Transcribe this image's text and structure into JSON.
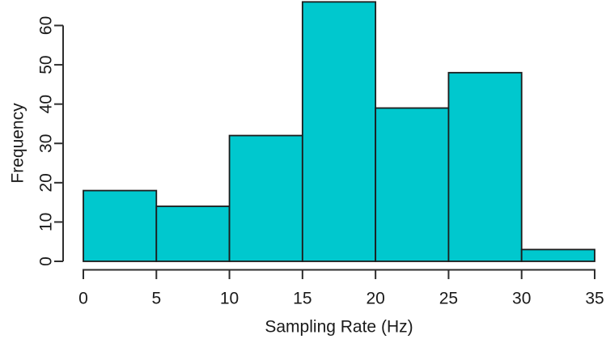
{
  "figure": {
    "background": "#ffffff"
  },
  "chart_data": {
    "type": "bar",
    "subtype": "histogram",
    "title": "",
    "xlabel": "Sampling Rate (Hz)",
    "ylabel": "Frequency",
    "bin_edges": [
      0,
      5,
      10,
      15,
      20,
      25,
      30,
      35
    ],
    "categories": [
      "0-5",
      "5-10",
      "10-15",
      "15-20",
      "20-25",
      "25-30",
      "30-35"
    ],
    "values": [
      18,
      14,
      32,
      66,
      39,
      48,
      3
    ],
    "x_ticks": [
      0,
      5,
      10,
      15,
      20,
      25,
      30,
      35
    ],
    "y_ticks": [
      0,
      10,
      20,
      30,
      40,
      50,
      60
    ],
    "xlim": [
      0,
      35
    ],
    "ylim": [
      0,
      66
    ],
    "grid": false,
    "legend": "none",
    "colors": {
      "bar_fill": "#00C8CE",
      "bar_stroke": "#1c1c1c",
      "axis": "#2e2e2e",
      "text": "#1a1a1a"
    }
  }
}
